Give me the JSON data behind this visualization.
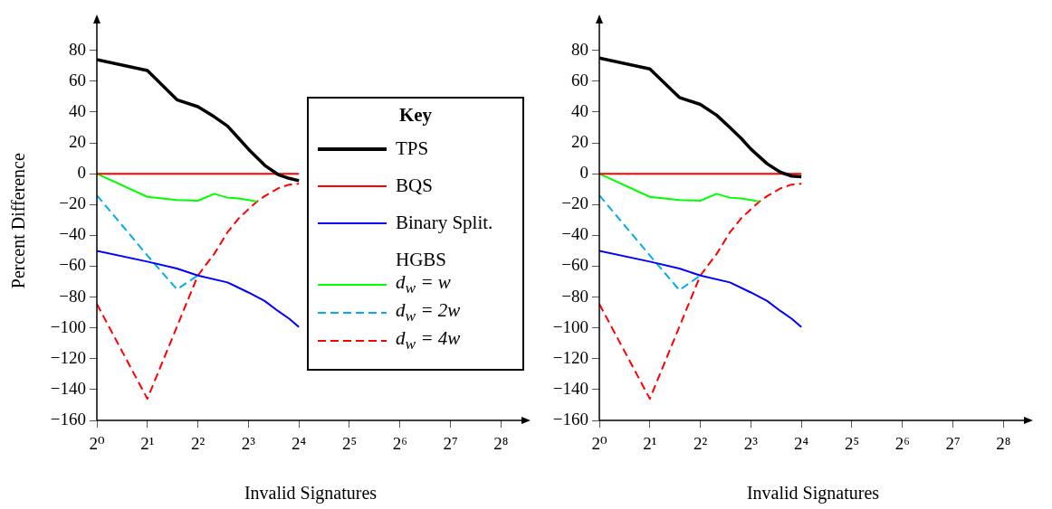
{
  "chart_data": [
    {
      "type": "line",
      "xlabel": "Invalid Signatures",
      "ylabel": "Percent Difference",
      "legend_title": "Key",
      "annotations": [
        "HGBS"
      ],
      "legend": "right",
      "grid": false,
      "log": "x",
      "xlim": [
        1,
        352
      ],
      "ylim": [
        -160,
        99
      ],
      "xticks": [
        {
          "value": 1,
          "label": "2⁰"
        },
        {
          "value": 2,
          "label": "2¹"
        },
        {
          "value": 4,
          "label": "2²"
        },
        {
          "value": 8,
          "label": "2³"
        },
        {
          "value": 16,
          "label": "2⁴"
        },
        {
          "value": 32,
          "label": "2⁵"
        },
        {
          "value": 64,
          "label": "2⁶"
        },
        {
          "value": 128,
          "label": "2⁷"
        },
        {
          "value": 256,
          "label": "2⁸"
        }
      ],
      "yticks": [
        -160,
        -140,
        -120,
        -100,
        -80,
        -60,
        -40,
        -20,
        0,
        20,
        40,
        60,
        80
      ],
      "series": [
        {
          "name": "TPS",
          "color": "#000000",
          "x": [
            1,
            2,
            3,
            4,
            5,
            6,
            7,
            8,
            10,
            12,
            14,
            16
          ],
          "values": [
            74,
            67,
            48,
            43.5,
            37,
            31,
            23,
            16,
            5.5,
            -0.5,
            -3,
            -4.5
          ]
        },
        {
          "name": "BQS",
          "color": "#ff0000",
          "x": [
            1,
            16
          ],
          "values": [
            0,
            0
          ]
        },
        {
          "name": "Binary Split.",
          "color": "#0000ff",
          "x": [
            1,
            2,
            3,
            4,
            6,
            8,
            10,
            12,
            14,
            16
          ],
          "values": [
            -50,
            -57,
            -61.5,
            -66,
            -70.5,
            -77,
            -82.5,
            -89,
            -94,
            -99.5
          ]
        },
        {
          "name": "d$_{w}$ = w",
          "color": "#00ff00",
          "x": [
            1,
            2,
            3,
            4,
            5,
            6,
            7,
            8,
            9
          ],
          "values": [
            0,
            -15,
            -17,
            -17.5,
            -13,
            -15.5,
            -16,
            -17,
            -18
          ]
        },
        {
          "name": "d$_{w}$ = 2w",
          "color": "#00aeef",
          "line_style": "dashed",
          "x": [
            1,
            2,
            3,
            4
          ],
          "values": [
            -14,
            -53,
            -75,
            -66
          ]
        },
        {
          "name": "d$_{w}$ = 4w",
          "color": "#ff0000",
          "line_style": "dashed",
          "x": [
            1,
            2,
            4,
            5,
            6,
            7,
            8,
            9,
            10,
            12,
            14,
            16
          ],
          "values": [
            -84.5,
            -146,
            -66,
            -52,
            -38,
            -29,
            -23,
            -18,
            -14.5,
            -9.5,
            -7,
            -6.5
          ]
        }
      ]
    },
    {
      "type": "line",
      "xlabel": "Invalid Signatures",
      "legend": false,
      "grid": false,
      "log": "x",
      "xlim": [
        1,
        352
      ],
      "ylim": [
        -160,
        99
      ],
      "xticks": [
        {
          "value": 1,
          "label": "2⁰"
        },
        {
          "value": 2,
          "label": "2¹"
        },
        {
          "value": 4,
          "label": "2²"
        },
        {
          "value": 8,
          "label": "2³"
        },
        {
          "value": 16,
          "label": "2⁴"
        },
        {
          "value": 32,
          "label": "2⁵"
        },
        {
          "value": 64,
          "label": "2⁶"
        },
        {
          "value": 128,
          "label": "2⁷"
        },
        {
          "value": 256,
          "label": "2⁸"
        }
      ],
      "yticks": [
        -160,
        -140,
        -120,
        -100,
        -80,
        -60,
        -40,
        -20,
        0,
        20,
        40,
        60,
        80
      ],
      "series": [
        {
          "color": "#000000",
          "x": [
            1,
            2,
            3,
            4,
            5,
            6,
            7,
            8,
            10,
            12,
            14,
            16
          ],
          "values": [
            75,
            68,
            49.5,
            45,
            38,
            30,
            23,
            16,
            6.5,
            1,
            -1.5,
            -2
          ]
        },
        {
          "color": "#ff0000",
          "x": [
            1,
            16
          ],
          "values": [
            0,
            0
          ]
        },
        {
          "color": "#0000ff",
          "x": [
            1,
            2,
            3,
            4,
            6,
            8,
            10,
            12,
            14,
            16
          ],
          "values": [
            -50,
            -57,
            -61.5,
            -66,
            -70.5,
            -77,
            -82.5,
            -89,
            -94,
            -99.5
          ]
        },
        {
          "color": "#00ff00",
          "x": [
            1,
            2,
            3,
            4,
            5,
            6,
            7,
            8,
            9
          ],
          "values": [
            0,
            -15,
            -17,
            -17.5,
            -13,
            -15.5,
            -16,
            -17,
            -18
          ]
        },
        {
          "color": "#00aeef",
          "line_style": "dashed",
          "x": [
            1,
            2,
            3,
            4
          ],
          "values": [
            -14,
            -53,
            -75.5,
            -66
          ]
        },
        {
          "color": "#ff0000",
          "line_style": "dashed",
          "x": [
            1,
            2,
            4,
            5,
            6,
            7,
            8,
            9,
            10,
            12,
            14,
            16
          ],
          "values": [
            -84.5,
            -146,
            -66,
            -52,
            -38,
            -29,
            -23,
            -18,
            -14.5,
            -9.5,
            -7,
            -6.5
          ]
        }
      ]
    }
  ]
}
